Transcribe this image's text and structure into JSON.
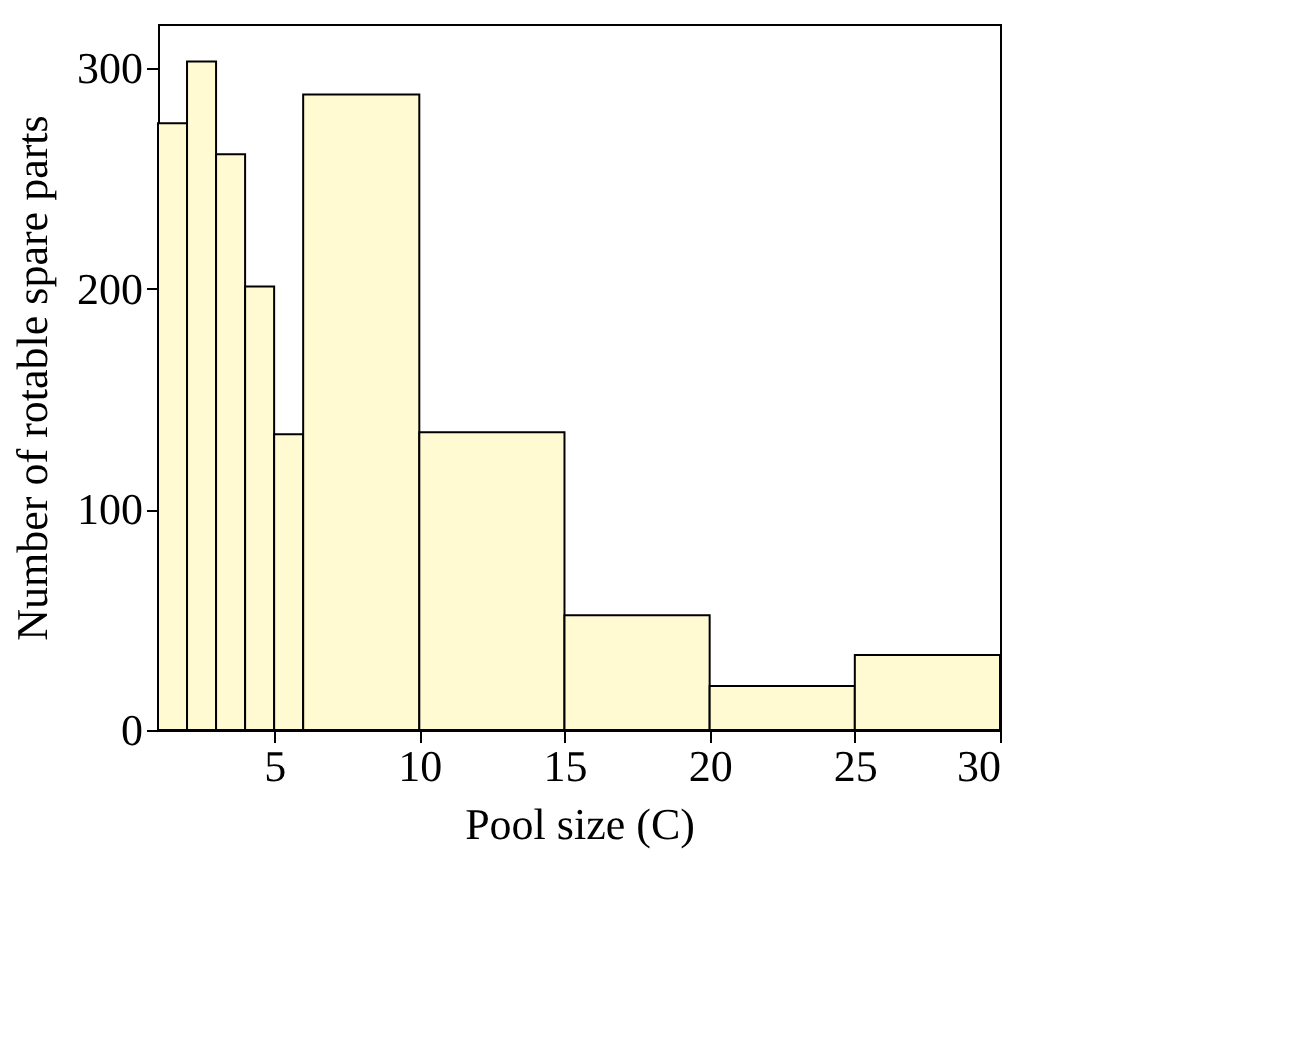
{
  "chart_data": {
    "type": "histogram",
    "xlabel": "Pool size (C)",
    "ylabel": "Number of rotable spare parts",
    "bins": [
      1,
      2,
      3,
      4,
      5,
      6,
      10,
      15,
      20,
      25,
      30
    ],
    "values": [
      275,
      303,
      261,
      201,
      134,
      288,
      135,
      52,
      20,
      34
    ],
    "color": "#fffad2",
    "xlim": [
      1,
      30
    ],
    "xticks": [
      5,
      10,
      15,
      20,
      25,
      30
    ],
    "ylim": [
      0,
      320
    ],
    "yticks": [
      0,
      100,
      200,
      300
    ],
    "grid": false
  }
}
